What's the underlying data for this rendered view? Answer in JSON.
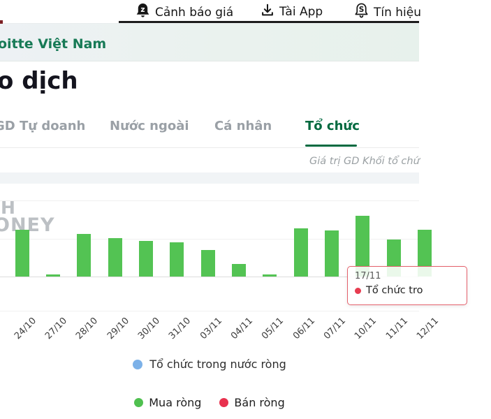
{
  "topbar": {
    "items": [
      {
        "icon": "bell-alert-icon",
        "label": "Cảnh báo giá"
      },
      {
        "icon": "download-icon",
        "label": "Tài App"
      },
      {
        "icon": "bell-signal-icon",
        "label": "Tín hiệu"
      }
    ]
  },
  "banner": {
    "link_text": "oitte Việt Nam"
  },
  "page": {
    "title": "o dịch"
  },
  "tabs": [
    {
      "label": "GD Tự doanh",
      "active": false
    },
    {
      "label": "Nước ngoài",
      "active": false
    },
    {
      "label": "Cá nhân",
      "active": false
    },
    {
      "label": "Tổ chức",
      "active": true
    }
  ],
  "chart_subtitle": "Giá trị GD Khối tổ chứ",
  "watermark": {
    "line1": "H",
    "line2": "ONEY"
  },
  "tooltip": {
    "date": "17/11",
    "series_label": "Tổ chức tro"
  },
  "legend_series": {
    "label": "Tổ chức trong nước ròng",
    "dot_color": "#7cb1e8"
  },
  "legend_buy_sell": [
    {
      "label": "Mua ròng",
      "color": "#4fc04f"
    },
    {
      "label": "Bán ròng",
      "color": "#e8314e"
    }
  ],
  "colors": {
    "bar_green": "#53c353",
    "tab_active_green": "#00693f",
    "banner_link_green": "#177a56",
    "tooltip_border_red": "#e4606b",
    "sell_red": "#e8314e",
    "series_blue": "#7cb1e8"
  },
  "chart_data": {
    "type": "bar",
    "title": "",
    "xlabel": "",
    "ylabel": "",
    "categories": [
      "24/10",
      "27/10",
      "28/10",
      "29/10",
      "30/10",
      "31/10",
      "03/11",
      "04/11",
      "05/11",
      "06/11",
      "07/11",
      "10/11",
      "11/11",
      "12/11"
    ],
    "values": [
      1.22,
      0.05,
      1.11,
      1.0,
      0.93,
      0.89,
      0.69,
      0.33,
      0.05,
      1.25,
      1.2,
      1.58,
      0.96,
      1.22
    ],
    "unit": "relative gridline units (y-axis labels outside visible crop)",
    "ylim": [
      -1,
      2.4
    ],
    "grid": true,
    "legend_position": "bottom",
    "legend_entries": [
      "Tổ chức trong nước ròng",
      "Mua ròng",
      "Bán ròng"
    ],
    "bar_color": "#53c353",
    "hover_tooltip": {
      "date": "17/11",
      "series": "Tổ chức tro"
    }
  }
}
